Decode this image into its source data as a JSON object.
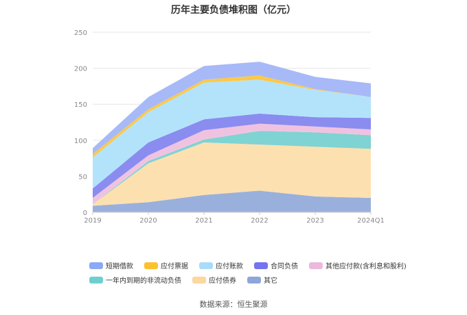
{
  "chart_data": {
    "type": "area",
    "stacked": true,
    "title": "历年主要负债堆积图（亿元）",
    "categories": [
      "2019",
      "2020",
      "2021",
      "2022",
      "2023",
      "2024Q1"
    ],
    "ylim": [
      0,
      250
    ],
    "yticks": [
      "0",
      "50",
      "100",
      "150",
      "200",
      "250"
    ],
    "grid": true,
    "legend_position": "bottom",
    "series": [
      {
        "name": "其它",
        "color": "#9ab0dc",
        "values": [
          9,
          14,
          24,
          30,
          22,
          20
        ]
      },
      {
        "name": "应付债券",
        "color": "#fde0b0",
        "values": [
          2,
          54,
          73,
          64,
          69,
          68
        ]
      },
      {
        "name": "一年内到期的非流动负债",
        "color": "#7fd3d3",
        "values": [
          0,
          3,
          4,
          19,
          20,
          19
        ]
      },
      {
        "name": "其他应付款(含利息和股利)",
        "color": "#efc3e0",
        "values": [
          9,
          8,
          13,
          10,
          8,
          8
        ]
      },
      {
        "name": "合同负债",
        "color": "#8a8cf0",
        "values": [
          13,
          18,
          15,
          14,
          13,
          16
        ]
      },
      {
        "name": "应付账款",
        "color": "#b3e3fa",
        "values": [
          43,
          42,
          51,
          47,
          38,
          29
        ]
      },
      {
        "name": "应付票据",
        "color": "#fbc94a",
        "values": [
          5,
          4,
          4,
          6,
          1,
          0
        ]
      },
      {
        "name": "短期借款",
        "color": "#a8b9f8",
        "values": [
          8,
          17,
          19,
          19,
          17,
          19
        ]
      }
    ]
  },
  "legend_rows": [
    [
      {
        "name": "短期借款",
        "color": "#8aa8f5"
      },
      {
        "name": "应付票据",
        "color": "#fbc12f"
      },
      {
        "name": "应付账款",
        "color": "#a9dcf9"
      },
      {
        "name": "合同负债",
        "color": "#7374ee"
      },
      {
        "name": "其他应付款(含利息和股利)",
        "color": "#eab9dc"
      }
    ],
    [
      {
        "name": "一年内到期的非流动负债",
        "color": "#6fcfcf"
      },
      {
        "name": "应付债券",
        "color": "#fcd79e"
      },
      {
        "name": "其它",
        "color": "#8ea6d8"
      }
    ]
  ],
  "source_text": "数据来源：恒生聚源"
}
